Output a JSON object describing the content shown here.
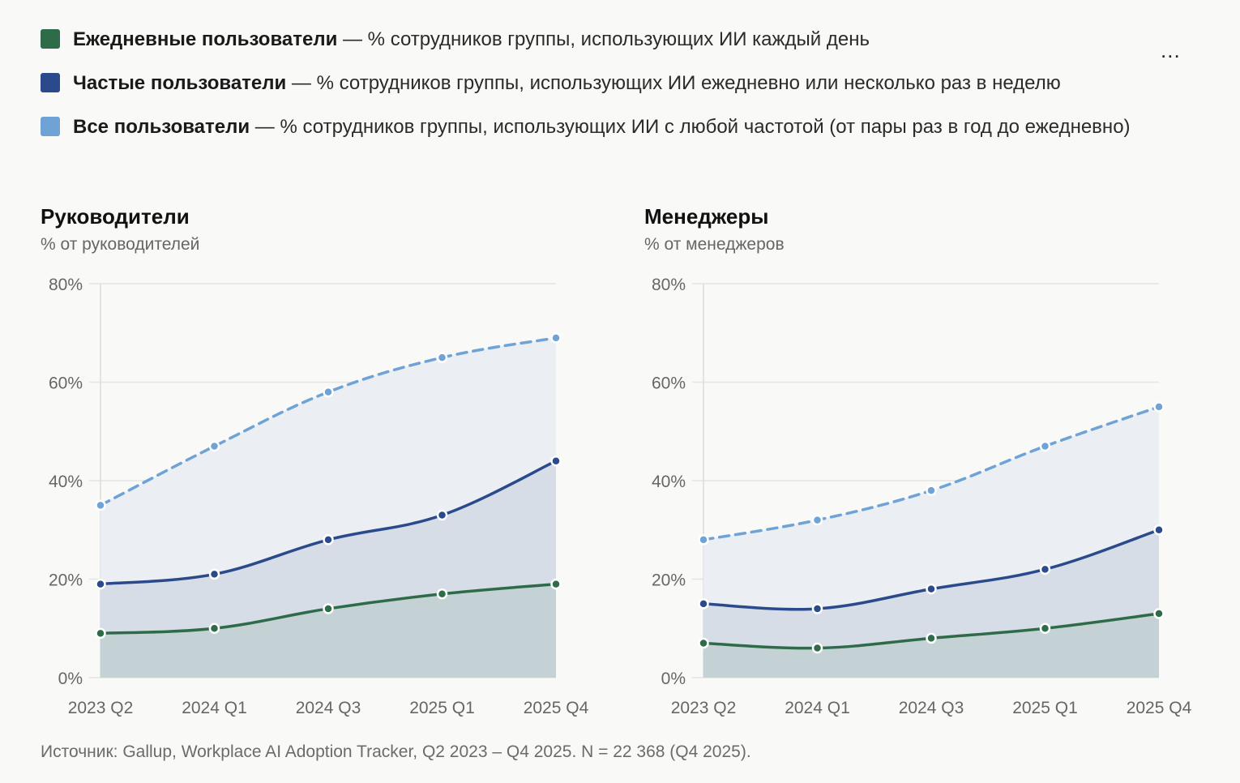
{
  "legend": [
    {
      "label": "Ежедневные пользователи",
      "desc": " — % сотрудников группы, использующих ИИ каждый день",
      "color": "#2e6b48"
    },
    {
      "label": "Частые пользователи",
      "desc": " — % сотрудников группы, использующих ИИ ежедневно или несколько раз в неделю",
      "color": "#2b4a8c"
    },
    {
      "label": "Все пользователи",
      "desc": " — % сотрудников группы, использующих ИИ с любой частотой (от пары раз в год до ежедневно)",
      "color": "#6fa3d6"
    }
  ],
  "menu": {
    "label": "..."
  },
  "source": "Источник: Gallup, Workplace AI Adoption Tracker, Q2 2023 – Q4 2025. N = 22 368 (Q4 2025).",
  "chart_data": [
    {
      "type": "area",
      "title": "Руководители",
      "subtitle": "% от руководителей",
      "categories": [
        "2023 Q2",
        "2024 Q1",
        "2024 Q3",
        "2025 Q1",
        "2025 Q4"
      ],
      "yticks": [
        "0%",
        "20%",
        "40%",
        "60%",
        "80%"
      ],
      "ylim": [
        0,
        80
      ],
      "series": [
        {
          "name": "Все пользователи",
          "values": [
            35,
            47,
            58,
            65,
            69
          ],
          "color": "#6fa3d6"
        },
        {
          "name": "Частые пользователи",
          "values": [
            19,
            21,
            28,
            33,
            44
          ],
          "color": "#2b4a8c"
        },
        {
          "name": "Ежедневные пользователи",
          "values": [
            9,
            10,
            14,
            17,
            19
          ],
          "color": "#2e6b48"
        }
      ]
    },
    {
      "type": "area",
      "title": "Менеджеры",
      "subtitle": "% от менеджеров",
      "categories": [
        "2023 Q2",
        "2024 Q1",
        "2024 Q3",
        "2025 Q1",
        "2025 Q4"
      ],
      "yticks": [
        "0%",
        "20%",
        "40%",
        "60%",
        "80%"
      ],
      "ylim": [
        0,
        80
      ],
      "series": [
        {
          "name": "Все пользователи",
          "values": [
            28,
            32,
            38,
            47,
            55
          ],
          "color": "#6fa3d6"
        },
        {
          "name": "Частые пользователи",
          "values": [
            15,
            14,
            18,
            22,
            30
          ],
          "color": "#2b4a8c"
        },
        {
          "name": "Ежедневные пользователи",
          "values": [
            7,
            6,
            8,
            10,
            13
          ],
          "color": "#2e6b48"
        }
      ]
    }
  ]
}
